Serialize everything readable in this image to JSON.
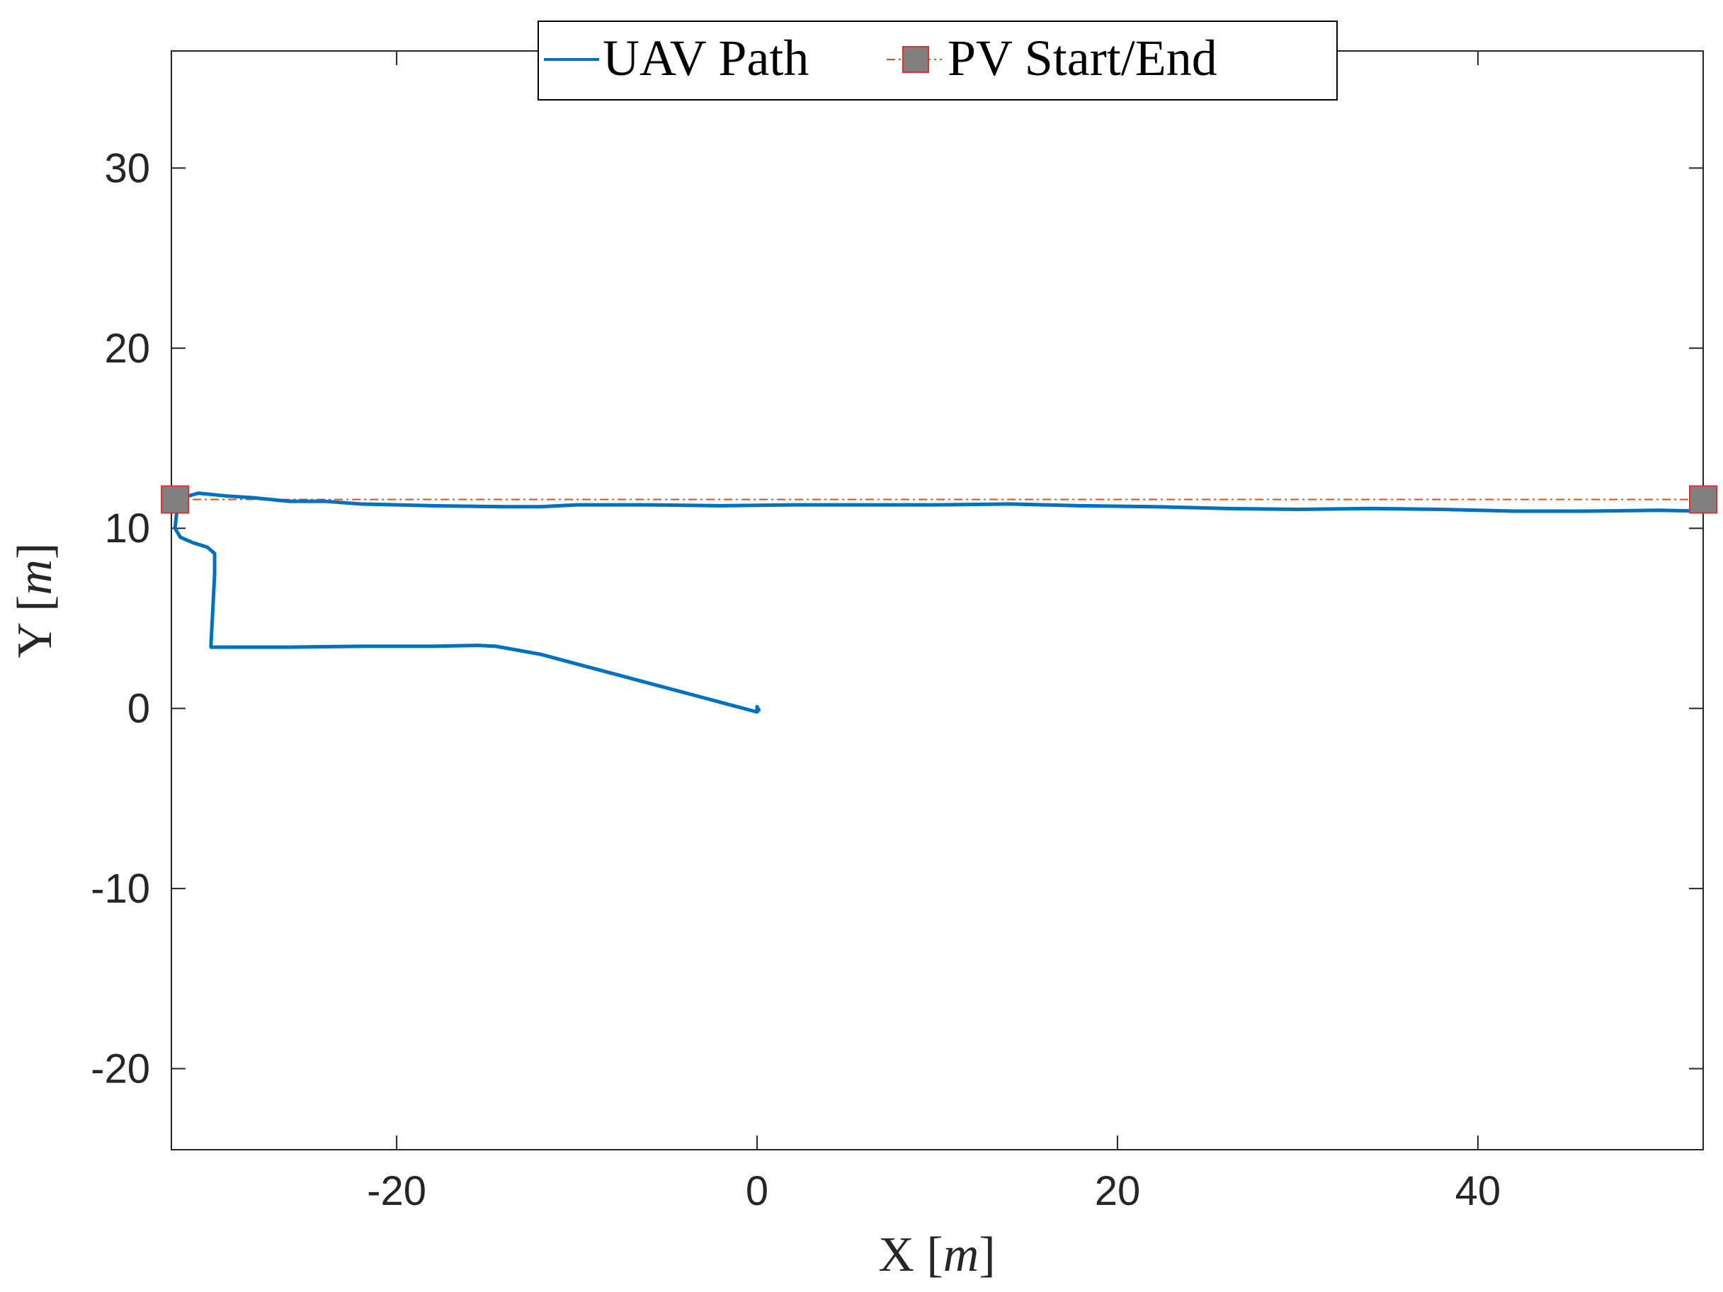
{
  "chart_data": {
    "type": "line",
    "title": "",
    "xlabel": "X [",
    "xlabel_var": "m",
    "xlabel_close": "]",
    "ylabel": "Y [",
    "ylabel_var": "m",
    "ylabel_close": "]",
    "xlim": [
      -32.5,
      52.5
    ],
    "ylim": [
      -24.5,
      36.5
    ],
    "xticks": [
      -20,
      0,
      20,
      40
    ],
    "xtick_labels": [
      "-20",
      "0",
      "20",
      "40"
    ],
    "yticks": [
      -20,
      -10,
      0,
      10,
      20,
      30
    ],
    "ytick_labels": [
      "-20",
      "-10",
      "0",
      "10",
      "20",
      "30"
    ],
    "grid": false,
    "legend_position": "top-center",
    "series": [
      {
        "name": "UAV Path",
        "color": "#0072BD",
        "style": "solid",
        "points": [
          [
            0.1,
            -0.1
          ],
          [
            0.0,
            0.1
          ],
          [
            0.0,
            -0.2
          ],
          [
            -3,
            0.6
          ],
          [
            -6,
            1.4
          ],
          [
            -9,
            2.2
          ],
          [
            -12,
            3.0
          ],
          [
            -14.5,
            3.45
          ],
          [
            -15.5,
            3.5
          ],
          [
            -18,
            3.45
          ],
          [
            -22,
            3.45
          ],
          [
            -26,
            3.4
          ],
          [
            -28.5,
            3.4
          ],
          [
            -30.3,
            3.4
          ],
          [
            -30.3,
            3.6
          ],
          [
            -30.2,
            5.5
          ],
          [
            -30.1,
            7.5
          ],
          [
            -30.1,
            8.6
          ],
          [
            -30.5,
            8.95
          ],
          [
            -31.3,
            9.2
          ],
          [
            -32.0,
            9.5
          ],
          [
            -32.3,
            10.0
          ],
          [
            -32.2,
            10.9
          ],
          [
            -31.9,
            11.7
          ],
          [
            -31.0,
            11.95
          ],
          [
            -29.5,
            11.8
          ],
          [
            -28,
            11.7
          ],
          [
            -26,
            11.5
          ],
          [
            -24,
            11.5
          ],
          [
            -22,
            11.35
          ],
          [
            -18,
            11.25
          ],
          [
            -14,
            11.2
          ],
          [
            -12,
            11.2
          ],
          [
            -10,
            11.3
          ],
          [
            -6,
            11.3
          ],
          [
            -2,
            11.25
          ],
          [
            2,
            11.3
          ],
          [
            6,
            11.3
          ],
          [
            10,
            11.3
          ],
          [
            14,
            11.35
          ],
          [
            18,
            11.25
          ],
          [
            22,
            11.2
          ],
          [
            26,
            11.1
          ],
          [
            30,
            11.05
          ],
          [
            34,
            11.1
          ],
          [
            38,
            11.05
          ],
          [
            42,
            10.95
          ],
          [
            46,
            10.95
          ],
          [
            50,
            11.0
          ],
          [
            52.5,
            10.95
          ]
        ]
      },
      {
        "name": "PV Start/End",
        "color": "#D95319",
        "marker_face": "#808080",
        "marker_edge": "#E03030",
        "style": "dash-dot",
        "points": [
          [
            -32.3,
            11.6
          ],
          [
            52.5,
            11.6
          ]
        ]
      }
    ]
  }
}
